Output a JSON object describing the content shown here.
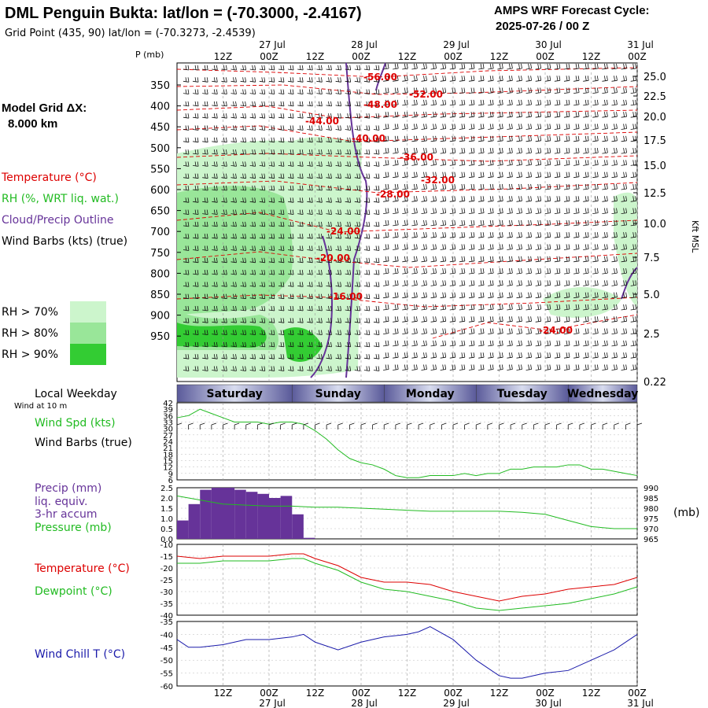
{
  "header": {
    "title": "DML Penguin Bukta:  lat/lon = (-70.3000, -2.4167)",
    "grid_point": "Grid Point (435, 90) lat/lon = (-70.3273, -2.4539)",
    "cycle_label": "AMPS WRF Forecast Cycle:",
    "cycle_value": "2025-07-26 / 00  Z"
  },
  "left_panel": {
    "p_label": "P (mb)",
    "model_grid_line1": "Model Grid ΔX:",
    "model_grid_line2": "8.000 km",
    "legend_temperature": "Temperature (°C)",
    "legend_rh": "RH (%, WRT liq. wat.)",
    "legend_cloud": "Cloud/Precip Outline",
    "legend_wind": "Wind Barbs (kts) (true)",
    "rh_levels": [
      "RH > 70%",
      "RH > 80%",
      "RH > 90%"
    ],
    "local_weekday": "Local Weekday",
    "wind_at_10m": "Wind at 10 m",
    "wind_spd": "Wind Spd (kts)",
    "wind_barbs": "Wind Barbs (true)",
    "precip_l1": "Precip (mm)",
    "precip_l2": "liq. equiv.",
    "precip_l3": "3-hr accum",
    "pressure": "Pressure (mb)",
    "temperature": "Temperature (°C)",
    "dewpoint": "Dewpoint (°C)",
    "wind_chill": "Wind Chill T (°C)"
  },
  "right_labels": {
    "kft_msl": "Kft MSL",
    "mb": "(mb)"
  },
  "colors": {
    "temperature": "#dd0000",
    "rh70": "#ccf5cc",
    "rh80": "#99e699",
    "rh90": "#33cc33",
    "cloud": "#663399",
    "wind_spd": "#22bb22",
    "precip": "#663399",
    "pressure": "#22bb22",
    "dewpoint": "#22bb22",
    "wind_chill": "#1a1aaa",
    "weekday_bar": "#5a5a9a"
  },
  "chart_data": [
    {
      "type": "heatmap",
      "title": "Time-height cross section",
      "x_ticks": [
        "12Z",
        "00Z",
        "12Z",
        "00Z",
        "12Z",
        "00Z",
        "12Z",
        "00Z",
        "12Z",
        "00Z"
      ],
      "x_dates": [
        "27 Jul",
        "28 Jul",
        "29 Jul",
        "30 Jul",
        "31 Jul"
      ],
      "x_range_hours": [
        0,
        120
      ],
      "pressure_ticks": [
        "350",
        "400",
        "450",
        "500",
        "550",
        "600",
        "650",
        "700",
        "750",
        "800",
        "850",
        "900",
        "950"
      ],
      "height_ticks_kft": [
        "25.0",
        "22.5",
        "20.0",
        "17.5",
        "15.0",
        "12.5",
        "10.0",
        "7.5",
        "5.0",
        "2.5",
        "0.22"
      ],
      "temperature_contour_labels": [
        "-56.00",
        "-52.00",
        "-48.00",
        "-44.00",
        "-40.00",
        "-36.00",
        "-32.00",
        "-28.00",
        "-24.00",
        "-20.00",
        "-16.00",
        "-24.00"
      ]
    },
    {
      "type": "line",
      "title": "Wind Spd (kts)",
      "y_ticks": [
        "42",
        "39",
        "36",
        "33",
        "30",
        "27",
        "24",
        "21",
        "18",
        "15",
        "12",
        "9",
        "6"
      ],
      "ylim": [
        6,
        42
      ],
      "x_hours": [
        0,
        3,
        6,
        9,
        12,
        15,
        18,
        21,
        24,
        27,
        30,
        33,
        36,
        39,
        42,
        45,
        48,
        51,
        54,
        57,
        60,
        63,
        66,
        69,
        72,
        75,
        78,
        81,
        84,
        87,
        90,
        93,
        96,
        99,
        102,
        105,
        108,
        111,
        114,
        117,
        120
      ],
      "values": [
        35,
        36,
        39,
        37,
        35,
        33,
        33,
        33,
        32,
        33,
        33,
        32,
        29,
        25,
        20,
        16,
        14,
        13,
        11,
        8,
        7,
        7,
        8,
        8,
        8,
        9,
        8,
        9,
        9,
        11,
        11,
        12,
        12,
        12,
        13,
        13,
        11,
        11,
        10,
        9,
        8
      ]
    },
    {
      "type": "bar",
      "title": "Precip (mm) / Pressure (mb)",
      "precip_y_ticks": [
        "2.5",
        "2.0",
        "1.5",
        "1.0",
        "0.5",
        "0.0"
      ],
      "precip_ylim": [
        0,
        2.5
      ],
      "precip_x_hours": [
        1.5,
        4.5,
        7.5,
        10.5,
        13.5,
        16.5,
        19.5,
        22.5,
        25.5,
        28.5,
        31.5,
        34.5
      ],
      "precip_values": [
        0.9,
        1.7,
        2.4,
        2.5,
        2.5,
        2.4,
        2.3,
        2.2,
        2.0,
        2.1,
        1.2,
        0.05
      ],
      "pressure_y_ticks": [
        "990",
        "985",
        "980",
        "975",
        "970",
        "965"
      ],
      "pressure_ylim": [
        965,
        990
      ],
      "pressure_x_hours": [
        0,
        6,
        12,
        18,
        24,
        30,
        36,
        42,
        48,
        54,
        60,
        66,
        72,
        78,
        84,
        90,
        96,
        102,
        108,
        114,
        120
      ],
      "pressure_values": [
        986,
        984,
        982,
        981.5,
        981,
        981,
        980.5,
        980.5,
        980,
        979.5,
        979,
        978.5,
        978.5,
        978.5,
        978.5,
        978,
        977,
        974,
        971,
        970,
        970
      ]
    },
    {
      "type": "line",
      "title": "Temperature / Dewpoint (°C)",
      "y_ticks": [
        "-10",
        "-15",
        "-20",
        "-25",
        "-30",
        "-35",
        "-40"
      ],
      "ylim": [
        -40,
        -10
      ],
      "x_hours": [
        0,
        6,
        12,
        18,
        24,
        30,
        33,
        36,
        42,
        48,
        54,
        60,
        66,
        72,
        78,
        84,
        90,
        96,
        102,
        108,
        114,
        120
      ],
      "series": [
        {
          "name": "Temperature",
          "values": [
            -15,
            -16,
            -15,
            -15,
            -15,
            -14,
            -14,
            -16,
            -19,
            -24,
            -26,
            -26,
            -27,
            -30,
            -32,
            -34,
            -32,
            -31,
            -29,
            -28,
            -27,
            -24
          ]
        },
        {
          "name": "Dewpoint",
          "values": [
            -18,
            -18,
            -17,
            -17,
            -17,
            -16,
            -16,
            -18,
            -21,
            -26,
            -29,
            -30,
            -32,
            -34,
            -37,
            -38,
            -37,
            -36,
            -35,
            -33,
            -31,
            -28
          ]
        }
      ]
    },
    {
      "type": "line",
      "title": "Wind Chill T (°C)",
      "y_ticks": [
        "-35",
        "-40",
        "-45",
        "-50",
        "-55",
        "-60"
      ],
      "ylim": [
        -60,
        -35
      ],
      "x_hours": [
        0,
        3,
        6,
        12,
        18,
        24,
        30,
        33,
        36,
        42,
        48,
        54,
        60,
        63,
        66,
        72,
        78,
        84,
        87,
        90,
        96,
        102,
        108,
        114,
        120
      ],
      "values": [
        -42,
        -45,
        -45,
        -44,
        -42,
        -42,
        -41,
        -40,
        -43,
        -46,
        -43,
        -41,
        -40,
        -39,
        -37,
        -42,
        -50,
        -56,
        -57,
        -57,
        -55,
        -54,
        -50,
        -46,
        -40
      ]
    }
  ]
}
